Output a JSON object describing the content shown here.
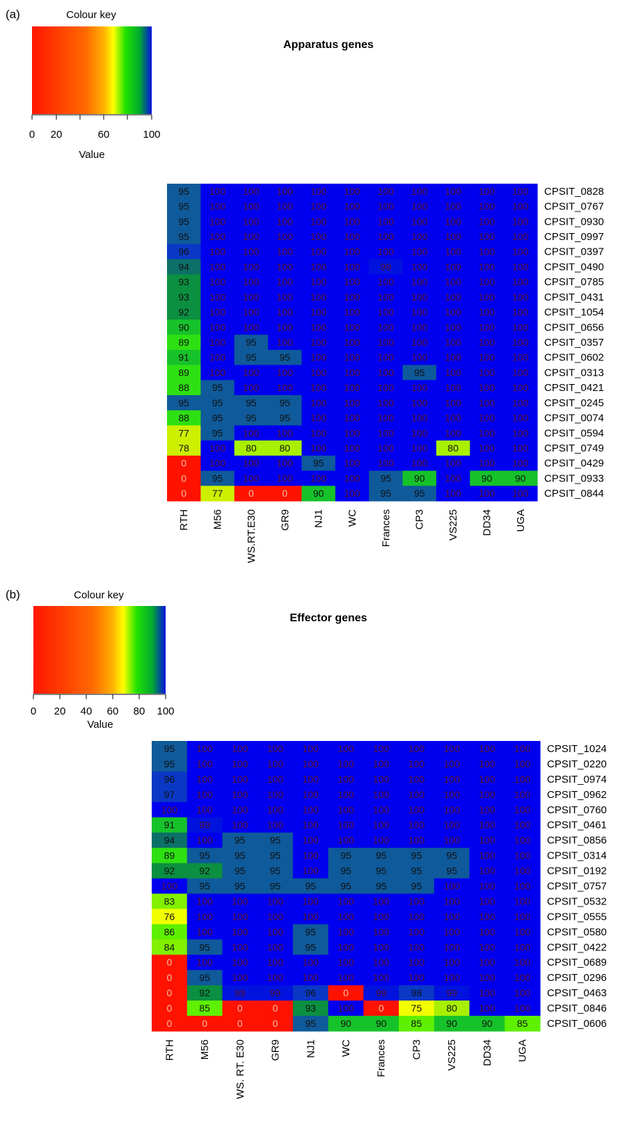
{
  "chart_data": [
    {
      "type": "heatmap",
      "panel_label": "(a)",
      "title": "Apparatus genes",
      "colour_key": {
        "title": "Colour key",
        "label": "Value",
        "ticks": [
          "0",
          "20",
          "60",
          "100"
        ],
        "range": [
          0,
          100
        ]
      },
      "columns": [
        "RTH",
        "M56",
        "WS.RT.E30",
        "GR9",
        "NJ1",
        "WC",
        "Frances",
        "CP3",
        "VS225",
        "DD34",
        "UGA"
      ],
      "rows": [
        "CPSIT_0828",
        "CPSIT_0767",
        "CPSIT_0930",
        "CPSIT_0997",
        "CPSIT_0397",
        "CPSIT_0490",
        "CPSIT_0785",
        "CPSIT_0431",
        "CPSIT_1054",
        "CPSIT_0656",
        "CPSIT_0357",
        "CPSIT_0602",
        "CPSIT_0313",
        "CPSIT_0421",
        "CPSIT_0245",
        "CPSIT_0074",
        "CPSIT_0594",
        "CPSIT_0749",
        "CPSIT_0429",
        "CPSIT_0933",
        "CPSIT_0844"
      ],
      "values": [
        [
          95,
          100,
          100,
          100,
          100,
          100,
          100,
          100,
          100,
          100,
          100
        ],
        [
          95,
          100,
          100,
          100,
          100,
          100,
          100,
          100,
          100,
          100,
          100
        ],
        [
          95,
          100,
          100,
          100,
          100,
          100,
          100,
          100,
          100,
          100,
          100
        ],
        [
          95,
          100,
          100,
          100,
          100,
          100,
          100,
          100,
          100,
          100,
          100
        ],
        [
          96,
          100,
          100,
          100,
          100,
          100,
          100,
          100,
          100,
          100,
          100
        ],
        [
          94,
          100,
          100,
          100,
          100,
          100,
          99,
          100,
          100,
          100,
          100
        ],
        [
          93,
          100,
          100,
          100,
          100,
          100,
          100,
          100,
          100,
          100,
          100
        ],
        [
          93,
          100,
          100,
          100,
          100,
          100,
          100,
          100,
          100,
          100,
          100
        ],
        [
          92,
          100,
          100,
          100,
          100,
          100,
          100,
          100,
          100,
          100,
          100
        ],
        [
          90,
          100,
          100,
          100,
          100,
          100,
          100,
          100,
          100,
          100,
          100
        ],
        [
          89,
          100,
          95,
          100,
          100,
          100,
          100,
          100,
          100,
          100,
          100
        ],
        [
          91,
          100,
          95,
          95,
          100,
          100,
          100,
          100,
          100,
          100,
          100
        ],
        [
          89,
          100,
          100,
          100,
          100,
          100,
          100,
          95,
          100,
          100,
          100
        ],
        [
          88,
          95,
          100,
          100,
          100,
          100,
          100,
          100,
          100,
          100,
          100
        ],
        [
          95,
          95,
          95,
          95,
          100,
          100,
          100,
          100,
          100,
          100,
          100
        ],
        [
          88,
          95,
          95,
          95,
          100,
          100,
          100,
          100,
          100,
          100,
          100
        ],
        [
          77,
          95,
          100,
          100,
          100,
          100,
          100,
          100,
          100,
          100,
          100
        ],
        [
          78,
          100,
          80,
          80,
          100,
          100,
          100,
          100,
          80,
          100,
          100
        ],
        [
          0,
          100,
          100,
          100,
          95,
          100,
          100,
          100,
          100,
          100,
          100
        ],
        [
          0,
          95,
          100,
          100,
          100,
          100,
          95,
          90,
          100,
          90,
          90
        ],
        [
          0,
          77,
          0,
          0,
          90,
          100,
          95,
          95,
          100,
          100,
          100
        ]
      ]
    },
    {
      "type": "heatmap",
      "panel_label": "(b)",
      "title": "Effector genes",
      "colour_key": {
        "title": "Colour key",
        "label": "Value",
        "ticks": [
          "0",
          "20",
          "40",
          "60",
          "80",
          "100"
        ],
        "range": [
          0,
          100
        ]
      },
      "columns": [
        "RTH",
        "M56",
        "WS. RT. E30",
        "GR9",
        "NJ1",
        "WC",
        "Frances",
        "CP3",
        "VS225",
        "DD34",
        "UGA"
      ],
      "rows": [
        "CPSIT_1024",
        "CPSIT_0220",
        "CPSIT_0974",
        "CPSIT_0962",
        "CPSIT_0760",
        "CPSIT_0461",
        "CPSIT_0856",
        "CPSIT_0314",
        "CPSIT_0192",
        "CPSIT_0757",
        "CPSIT_0532",
        "CPSIT_0555",
        "CPSIT_0580",
        "CPSIT_0422",
        "CPSIT_0689",
        "CPSIT_0296",
        "CPSIT_0463",
        "CPSIT_0846",
        "CPSIT_0606"
      ],
      "values": [
        [
          95,
          100,
          100,
          100,
          100,
          100,
          100,
          100,
          100,
          100,
          100
        ],
        [
          95,
          100,
          100,
          100,
          100,
          100,
          100,
          100,
          100,
          100,
          100
        ],
        [
          96,
          100,
          100,
          100,
          100,
          100,
          100,
          100,
          100,
          100,
          100
        ],
        [
          97,
          100,
          100,
          100,
          100,
          100,
          100,
          100,
          100,
          100,
          100
        ],
        [
          100,
          100,
          100,
          100,
          100,
          100,
          100,
          100,
          100,
          100,
          100
        ],
        [
          91,
          99,
          100,
          100,
          100,
          100,
          100,
          100,
          100,
          100,
          100
        ],
        [
          94,
          100,
          95,
          95,
          100,
          100,
          100,
          100,
          100,
          100,
          100
        ],
        [
          89,
          95,
          95,
          95,
          100,
          95,
          95,
          95,
          95,
          100,
          100
        ],
        [
          92,
          92,
          95,
          95,
          100,
          95,
          95,
          95,
          95,
          100,
          100
        ],
        [
          100,
          95,
          95,
          95,
          95,
          95,
          95,
          95,
          100,
          100,
          100
        ],
        [
          83,
          100,
          100,
          100,
          100,
          100,
          100,
          100,
          100,
          100,
          100
        ],
        [
          76,
          100,
          100,
          100,
          100,
          100,
          100,
          100,
          100,
          100,
          100
        ],
        [
          86,
          100,
          100,
          100,
          95,
          100,
          100,
          100,
          100,
          100,
          100
        ],
        [
          84,
          95,
          100,
          100,
          95,
          100,
          100,
          100,
          100,
          100,
          100
        ],
        [
          0,
          100,
          100,
          100,
          100,
          100,
          100,
          100,
          100,
          100,
          100
        ],
        [
          0,
          95,
          100,
          100,
          100,
          100,
          100,
          100,
          100,
          100,
          100
        ],
        [
          0,
          92,
          99,
          99,
          96,
          0,
          99,
          98,
          99,
          100,
          100
        ],
        [
          0,
          85,
          0,
          0,
          93,
          100,
          0,
          75,
          80,
          100,
          100
        ],
        [
          0,
          0,
          0,
          0,
          95,
          90,
          90,
          85,
          90,
          90,
          85
        ]
      ]
    }
  ]
}
